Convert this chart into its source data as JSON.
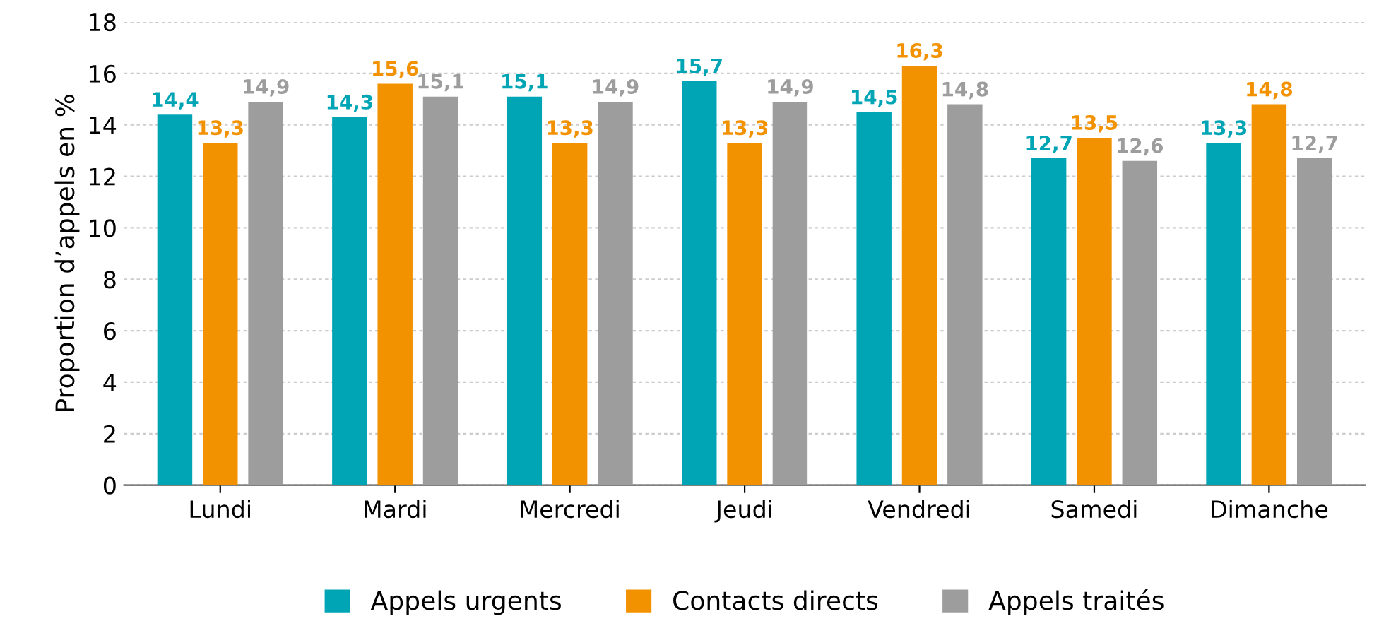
{
  "chart_data": {
    "type": "bar",
    "ylabel": "Proportion d’appels en %",
    "categories": [
      "Lundi",
      "Mardi",
      "Mercredi",
      "Jeudi",
      "Vendredi",
      "Samedi",
      "Dimanche"
    ],
    "series": [
      {
        "name": "Appels urgents",
        "color": "#00a5b5",
        "values": [
          14.4,
          14.3,
          15.1,
          15.7,
          14.5,
          12.7,
          13.3
        ],
        "value_labels": [
          "14,4",
          "14,3",
          "15,1",
          "15,7",
          "14,5",
          "12,7",
          "13,3"
        ]
      },
      {
        "name": "Contacts directs",
        "color": "#f39200",
        "values": [
          13.3,
          15.6,
          13.3,
          13.3,
          16.3,
          13.5,
          14.8
        ],
        "value_labels": [
          "13,3",
          "15,6",
          "13,3",
          "13,3",
          "16,3",
          "13,5",
          "14,8"
        ]
      },
      {
        "name": "Appels traités",
        "color": "#9d9d9d",
        "values": [
          14.9,
          15.1,
          14.9,
          14.9,
          14.8,
          12.6,
          12.7
        ],
        "value_labels": [
          "14,9",
          "15,1",
          "14,9",
          "14,9",
          "14,8",
          "12,6",
          "12,7"
        ]
      }
    ],
    "ylim": [
      0,
      18
    ],
    "yticks": [
      0,
      2,
      4,
      6,
      8,
      10,
      12,
      14,
      16,
      18
    ],
    "grid": "y",
    "legend": "bottom"
  }
}
